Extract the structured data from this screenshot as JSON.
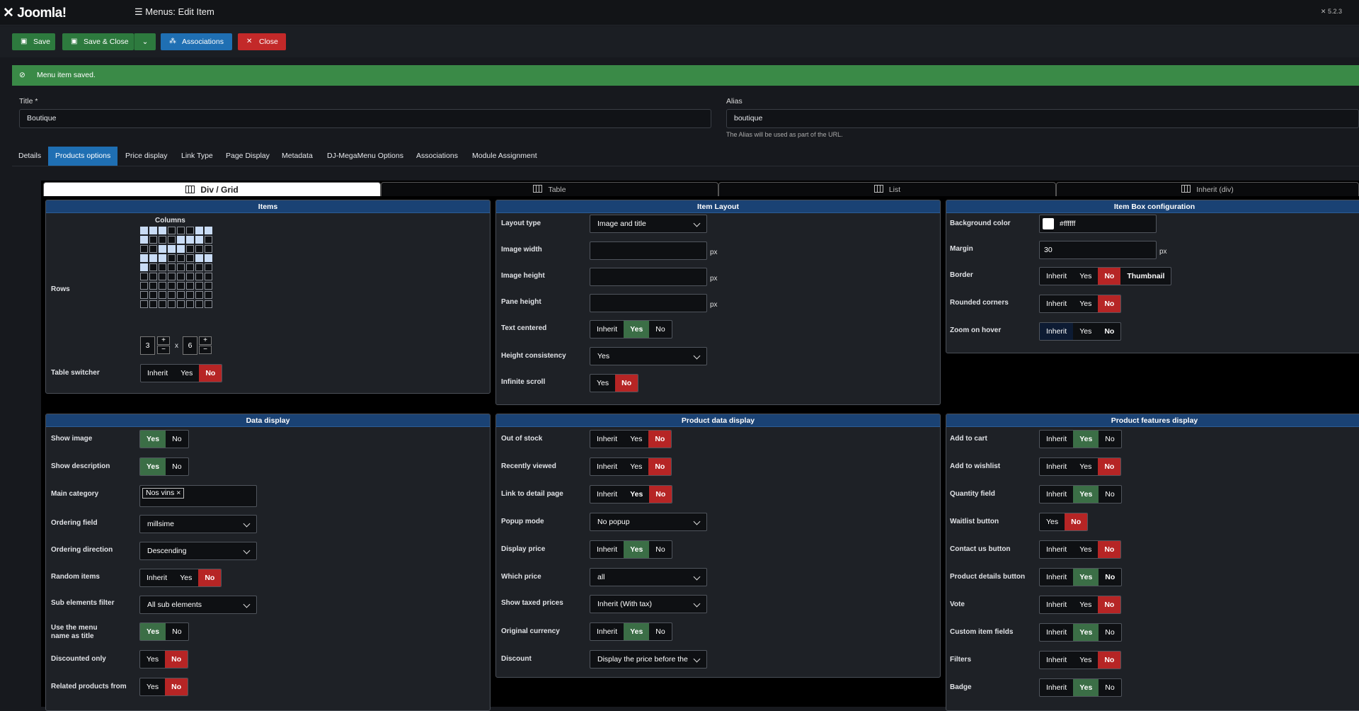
{
  "header": {
    "logo": "Joomla!",
    "title": "Menus: Edit Item",
    "version": "5.2.3"
  },
  "toolbar": {
    "save": "Save",
    "save_close": "Save & Close",
    "associations": "Associations",
    "close": "Close"
  },
  "alert": {
    "message": "Menu item saved."
  },
  "form": {
    "title_label": "Title *",
    "title_value": "Boutique",
    "alias_label": "Alias",
    "alias_value": "boutique",
    "alias_hint": "The Alias will be used as part of the URL."
  },
  "tabs": [
    "Details",
    "Products options",
    "Price display",
    "Link Type",
    "Page Display",
    "Metadata",
    "DJ-MegaMenu Options",
    "Associations",
    "Module Assignment"
  ],
  "view_tabs": [
    "Div / Grid",
    "Table",
    "List",
    "Inherit (div)"
  ],
  "items": {
    "title": "Items",
    "columns_label": "Columns",
    "rows_label": "Rows",
    "rows_value": "3",
    "x": "x",
    "cols_value": "6",
    "plus": "+",
    "minus": "−",
    "table_switcher_label": "Table switcher",
    "table_switcher": [
      "Inherit",
      "Yes",
      "No"
    ]
  },
  "item_layout": {
    "title": "Item Layout",
    "layout_type_label": "Layout type",
    "layout_type": "Image and title",
    "image_width_label": "Image width",
    "image_height_label": "Image height",
    "pane_height_label": "Pane height",
    "unit": "px",
    "text_centered_label": "Text centered",
    "text_centered": [
      "Inherit",
      "Yes",
      "No"
    ],
    "height_consistency_label": "Height consistency",
    "height_consistency": "Yes",
    "infinite_scroll_label": "Infinite scroll",
    "infinite_scroll": [
      "Yes",
      "No"
    ]
  },
  "item_box": {
    "title": "Item Box configuration",
    "bg_label": "Background color",
    "bg_value": "#ffffff",
    "margin_label": "Margin",
    "margin_value": "30",
    "border_label": "Border",
    "border": [
      "Inherit",
      "Yes",
      "No",
      "Thumbnail"
    ],
    "rounded_label": "Rounded corners",
    "rounded": [
      "Inherit",
      "Yes",
      "No"
    ],
    "zoom_label": "Zoom on hover",
    "zoom": [
      "Inherit",
      "Yes",
      "No"
    ]
  },
  "data_display": {
    "title": "Data display",
    "show_image_label": "Show image",
    "show_image": [
      "Yes",
      "No"
    ],
    "show_desc_label": "Show description",
    "show_desc": [
      "Yes",
      "No"
    ],
    "main_cat_label": "Main category",
    "main_cat_chip": "Nos vins",
    "ordering_field_label": "Ordering field",
    "ordering_field": "millsime",
    "ordering_dir_label": "Ordering direction",
    "ordering_dir": "Descending",
    "random_label": "Random items",
    "random": [
      "Inherit",
      "Yes",
      "No"
    ],
    "sub_filter_label": "Sub elements filter",
    "sub_filter": "All sub elements",
    "menu_name_label": "Use the menu name as title",
    "menu_name": [
      "Yes",
      "No"
    ],
    "discounted_label": "Discounted only",
    "discounted": [
      "Yes",
      "No"
    ],
    "related_label": "Related products from",
    "related": [
      "Yes",
      "No"
    ]
  },
  "product_data": {
    "title": "Product data display",
    "out_of_stock_label": "Out of stock",
    "out_of_stock": [
      "Inherit",
      "Yes",
      "No"
    ],
    "recently_label": "Recently viewed",
    "recently": [
      "Inherit",
      "Yes",
      "No"
    ],
    "link_detail_label": "Link to detail page",
    "link_detail": [
      "Inherit",
      "Yes",
      "No"
    ],
    "popup_label": "Popup mode",
    "popup": "No popup",
    "display_price_label": "Display price",
    "display_price": [
      "Inherit",
      "Yes",
      "No"
    ],
    "which_price_label": "Which price",
    "which_price": "all",
    "taxed_label": "Show taxed prices",
    "taxed": "Inherit (With tax)",
    "orig_currency_label": "Original currency",
    "orig_currency": [
      "Inherit",
      "Yes",
      "No"
    ],
    "discount_label": "Discount",
    "discount": "Display the price before the"
  },
  "features": {
    "title": "Product features display",
    "add_cart_label": "Add to cart",
    "add_cart": [
      "Inherit",
      "Yes",
      "No"
    ],
    "wishlist_label": "Add to wishlist",
    "wishlist": [
      "Inherit",
      "Yes",
      "No"
    ],
    "qty_label": "Quantity field",
    "qty": [
      "Inherit",
      "Yes",
      "No"
    ],
    "waitlist_label": "Waitlist button",
    "waitlist": [
      "Yes",
      "No"
    ],
    "contact_label": "Contact us button",
    "contact": [
      "Inherit",
      "Yes",
      "No"
    ],
    "details_btn_label": "Product details button",
    "details_btn": [
      "Inherit",
      "Yes",
      "No"
    ],
    "vote_label": "Vote",
    "vote": [
      "Inherit",
      "Yes",
      "No"
    ],
    "custom_label": "Custom item fields",
    "custom": [
      "Inherit",
      "Yes",
      "No"
    ],
    "filters_label": "Filters",
    "filters": [
      "Inherit",
      "Yes",
      "No"
    ],
    "badge_label": "Badge",
    "badge": [
      "Inherit",
      "Yes",
      "No"
    ]
  },
  "colors": {
    "accent": "#1f6fb3",
    "success": "#3a8a47",
    "danger": "#c32929",
    "panel_header": "#1a4274"
  }
}
